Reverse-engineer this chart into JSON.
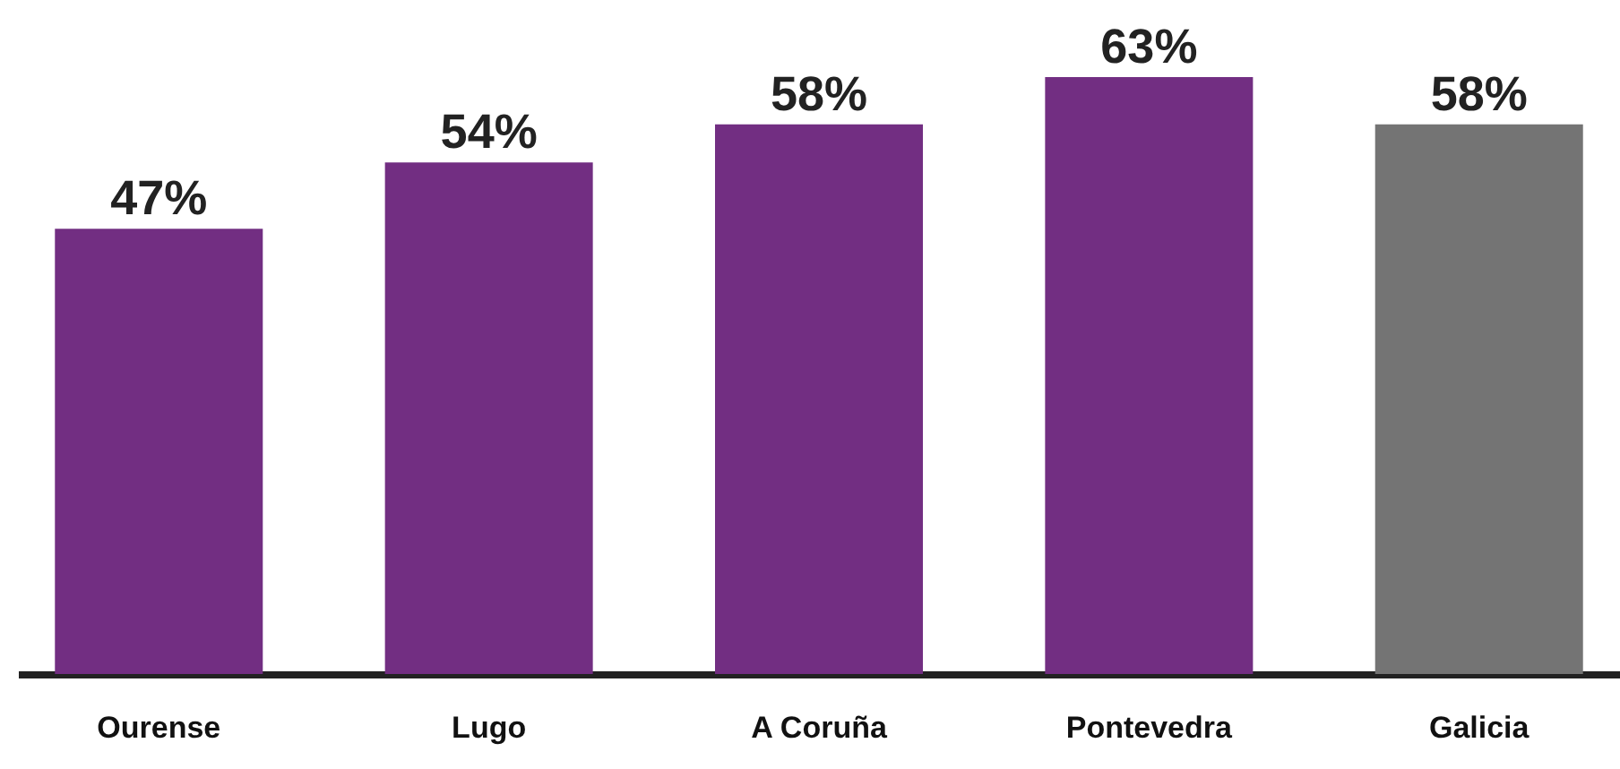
{
  "chart_data": {
    "type": "bar",
    "categories": [
      "Ourense",
      "Lugo",
      "A Coruña",
      "Pontevedra",
      "Galicia"
    ],
    "values": [
      47,
      54,
      58,
      63,
      58
    ],
    "colors": [
      "#722e82",
      "#722e82",
      "#722e82",
      "#722e82",
      "#747474"
    ],
    "value_labels": [
      "47%",
      "54%",
      "58%",
      "63%",
      "58%"
    ],
    "tick_labels": "x",
    "grid": false,
    "legend": false
  }
}
